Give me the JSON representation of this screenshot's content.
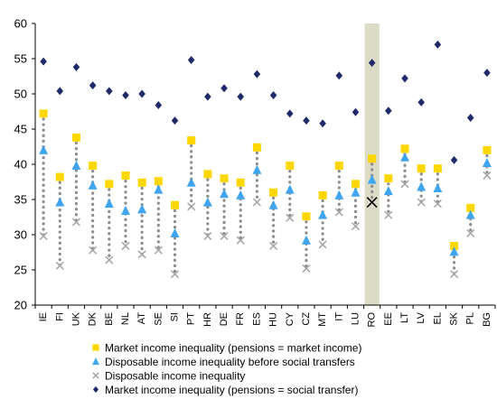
{
  "chart_data": {
    "type": "scatter",
    "ylim": [
      20,
      60
    ],
    "yticks": [
      20,
      25,
      30,
      35,
      40,
      45,
      50,
      55,
      60
    ],
    "grid": false,
    "legend_position": "bottom",
    "highlight_category": "RO",
    "categories": [
      "IE",
      "FI",
      "UK",
      "DK",
      "BE",
      "NL",
      "AT",
      "SE",
      "SI",
      "PT",
      "HR",
      "DE",
      "FR",
      "ES",
      "HU",
      "CY",
      "CZ",
      "MT",
      "IT",
      "LU",
      "RO",
      "EE",
      "LT",
      "LV",
      "EL",
      "SK",
      "PL",
      "BG"
    ],
    "series": [
      {
        "name": "Market income inequality (pensions = market income)",
        "marker": "square",
        "color": "#ffd700",
        "values": [
          47.2,
          38.2,
          43.8,
          39.8,
          37.2,
          38.4,
          37.4,
          37.6,
          34.2,
          43.4,
          38.6,
          38.0,
          37.4,
          42.4,
          36.0,
          39.8,
          32.6,
          35.6,
          39.8,
          37.2,
          40.8,
          38.0,
          42.2,
          39.4,
          39.4,
          28.4,
          33.8,
          42.0
        ]
      },
      {
        "name": "Disposable income inequality before social transfers",
        "marker": "triangle",
        "color": "#3fa5f0",
        "values": [
          42.0,
          34.6,
          39.8,
          37.0,
          34.4,
          33.4,
          33.6,
          36.4,
          30.2,
          37.4,
          34.6,
          35.8,
          35.6,
          39.2,
          34.2,
          36.4,
          29.2,
          32.8,
          35.6,
          36.0,
          37.8,
          36.2,
          41.0,
          36.8,
          36.6,
          27.6,
          32.8,
          40.2
        ]
      },
      {
        "name": "Disposable income inequality",
        "marker": "x",
        "color": "#a8a8a8",
        "values": [
          29.8,
          25.6,
          31.8,
          27.8,
          26.4,
          28.4,
          27.2,
          27.8,
          24.4,
          34.0,
          29.8,
          29.8,
          29.2,
          34.6,
          28.4,
          32.4,
          25.2,
          28.6,
          33.2,
          31.2,
          34.6,
          32.8,
          37.2,
          34.6,
          34.4,
          24.4,
          30.2,
          38.4
        ]
      },
      {
        "name": "Market income inequality (pensions = social transfer)",
        "marker": "diamond",
        "color": "#1f2a6b",
        "values": [
          54.6,
          50.4,
          53.8,
          51.2,
          50.4,
          49.8,
          50.0,
          48.4,
          46.2,
          54.8,
          49.6,
          50.8,
          49.6,
          52.8,
          49.8,
          47.2,
          46.2,
          45.8,
          52.6,
          47.4,
          54.4,
          47.6,
          52.2,
          48.8,
          57.0,
          40.6,
          46.6,
          53.0
        ]
      }
    ]
  }
}
